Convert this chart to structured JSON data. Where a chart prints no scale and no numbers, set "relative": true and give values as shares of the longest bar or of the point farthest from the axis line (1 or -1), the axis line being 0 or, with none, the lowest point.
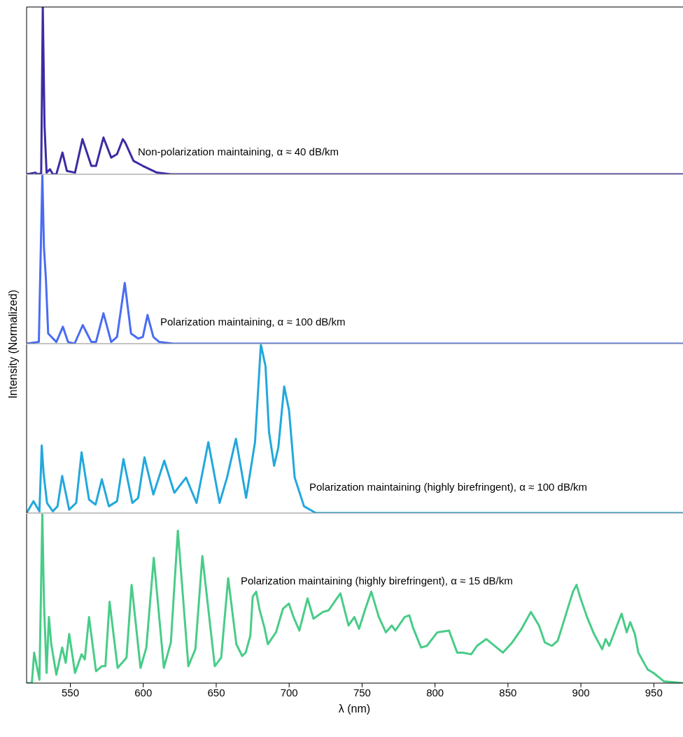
{
  "chart_data": [
    {
      "type": "line",
      "relative": true,
      "xlim": [
        520,
        970
      ],
      "xticks": [
        550,
        600,
        650,
        700,
        750,
        800,
        850,
        900,
        950
      ],
      "tick_labels": false,
      "annotations": [
        "Non-polarization maintaining, α ≈ 40 dB/km"
      ],
      "x": [
        520,
        526,
        527.5,
        530,
        531.1,
        532.3,
        533.7,
        536,
        538,
        540.4,
        544.6,
        547.6,
        553.2,
        558.3,
        564.4,
        567.6,
        572.7,
        578,
        582,
        586,
        587.6,
        593.3,
        599.7,
        609.3,
        618.8,
        970
      ],
      "series": [
        {
          "color": "#3b2ca3",
          "values": [
            0,
            0.01,
            0,
            0.005,
            1,
            0.29,
            0.01,
            0.03,
            0,
            0,
            0.13,
            0.02,
            0.01,
            0.21,
            0.05,
            0.05,
            0.22,
            0.1,
            0.12,
            0.21,
            0.19,
            0.08,
            0.05,
            0.01,
            0,
            0
          ]
        }
      ]
    },
    {
      "type": "line",
      "relative": true,
      "xlim": [
        520,
        970
      ],
      "tick_labels": false,
      "ylabel": "Intensity (Normalized)",
      "annotations": [
        "Polarization maintaining, α ≈ 100 dB/km"
      ],
      "x": [
        520,
        528.4,
        530.8,
        531.9,
        533.2,
        534.8,
        540.4,
        544.9,
        548.4,
        552.9,
        558.5,
        564.4,
        567.6,
        572.7,
        578,
        582,
        587.3,
        591.6,
        596.5,
        599.7,
        602.9,
        606.9,
        610.9,
        620.5,
        970
      ],
      "series": [
        {
          "color": "#4a6cf2",
          "values": [
            0,
            0.01,
            1,
            0.57,
            0.39,
            0.06,
            0.01,
            0.1,
            0.01,
            0,
            0.11,
            0.01,
            0.01,
            0.18,
            0.01,
            0.04,
            0.36,
            0.06,
            0.03,
            0.04,
            0.17,
            0.04,
            0.01,
            0,
            0
          ]
        }
      ]
    },
    {
      "type": "line",
      "relative": true,
      "xlim": [
        520,
        970
      ],
      "tick_labels": false,
      "annotations": [
        "Polarization maintaining (highly birefringent), α ≈ 100 dB/km"
      ],
      "x": [
        520,
        524.7,
        528.8,
        530.4,
        531.6,
        534,
        538,
        541.2,
        544.4,
        549.2,
        554,
        557.7,
        562.8,
        567.3,
        571.6,
        576.4,
        582,
        586.4,
        592.5,
        596.5,
        600.8,
        606.9,
        614.4,
        621.3,
        629.3,
        636.5,
        644.6,
        652.3,
        657.4,
        663.5,
        670.5,
        676.6,
        680.6,
        683.8,
        686.2,
        689.7,
        692.6,
        696.6,
        699.9,
        703.8,
        710.2,
        718.3,
        970
      ],
      "series": [
        {
          "color": "#22a8dc",
          "values": [
            0,
            0.07,
            0.01,
            0.4,
            0.24,
            0.06,
            0.01,
            0.04,
            0.22,
            0.02,
            0.06,
            0.36,
            0.08,
            0.05,
            0.2,
            0.04,
            0.07,
            0.32,
            0.06,
            0.09,
            0.33,
            0.11,
            0.31,
            0.12,
            0.21,
            0.06,
            0.42,
            0.06,
            0.21,
            0.44,
            0.09,
            0.42,
            1,
            0.87,
            0.48,
            0.28,
            0.39,
            0.75,
            0.61,
            0.21,
            0.04,
            0,
            0
          ]
        }
      ]
    },
    {
      "type": "line",
      "relative": true,
      "xlim": [
        520,
        970
      ],
      "xticks": [
        550,
        600,
        650,
        700,
        750,
        800,
        850,
        900,
        950
      ],
      "tick_labels": "x",
      "xlabel": "λ (nm)",
      "annotations": [
        "Polarization maintaining (highly birefringent), α ≈ 15 dB/km"
      ],
      "x": [
        520,
        523.6,
        525.2,
        528.8,
        530.8,
        531.9,
        533.7,
        535.3,
        536.9,
        540.4,
        544.4,
        546.8,
        549.2,
        553.2,
        557.7,
        559.9,
        562.8,
        567.6,
        571.6,
        574,
        576.9,
        582.4,
        588.5,
        592,
        598.1,
        602.1,
        607.2,
        614.1,
        618.9,
        623.7,
        630.9,
        635.7,
        640.5,
        649,
        653.4,
        658.2,
        663.8,
        667.8,
        670.2,
        673.4,
        675,
        677.4,
        679.8,
        683,
        685.4,
        691,
        695.8,
        699.8,
        703,
        707,
        712.6,
        716.7,
        723.1,
        727.1,
        731.1,
        735.1,
        740.7,
        744.7,
        747.9,
        751.9,
        756.3,
        761.5,
        766.3,
        770.3,
        772.8,
        779.2,
        782.4,
        784.8,
        790.4,
        794.4,
        801.6,
        809.6,
        815.2,
        819.2,
        824.8,
        828.8,
        835.2,
        846.5,
        852.9,
        859.3,
        865.7,
        871.3,
        875.3,
        880.1,
        884.1,
        888.1,
        891.3,
        894.6,
        897,
        899.4,
        904.2,
        909,
        914.6,
        917,
        919.4,
        923.4,
        927.9,
        931.4,
        933.8,
        937,
        939.4,
        945.8,
        949.8,
        957,
        970
      ],
      "series": [
        {
          "color": "#48cc88",
          "values": [
            0,
            0,
            0.18,
            0.02,
            1,
            0.48,
            0.06,
            0.39,
            0.23,
            0.05,
            0.21,
            0.12,
            0.29,
            0.06,
            0.17,
            0.14,
            0.39,
            0.07,
            0.1,
            0.1,
            0.48,
            0.09,
            0.15,
            0.58,
            0.09,
            0.21,
            0.74,
            0.09,
            0.24,
            0.9,
            0.1,
            0.2,
            0.75,
            0.1,
            0.15,
            0.62,
            0.23,
            0.16,
            0.18,
            0.28,
            0.51,
            0.54,
            0.43,
            0.33,
            0.23,
            0.3,
            0.44,
            0.47,
            0.39,
            0.31,
            0.5,
            0.38,
            0.42,
            0.43,
            0.48,
            0.53,
            0.34,
            0.39,
            0.32,
            0.43,
            0.54,
            0.39,
            0.3,
            0.34,
            0.31,
            0.39,
            0.4,
            0.33,
            0.21,
            0.22,
            0.3,
            0.31,
            0.18,
            0.18,
            0.17,
            0.22,
            0.26,
            0.18,
            0.24,
            0.32,
            0.42,
            0.34,
            0.24,
            0.22,
            0.25,
            0.36,
            0.45,
            0.54,
            0.58,
            0.51,
            0.39,
            0.29,
            0.2,
            0.26,
            0.22,
            0.31,
            0.41,
            0.3,
            0.36,
            0.29,
            0.18,
            0.08,
            0.06,
            0.01,
            0
          ]
        }
      ]
    }
  ]
}
